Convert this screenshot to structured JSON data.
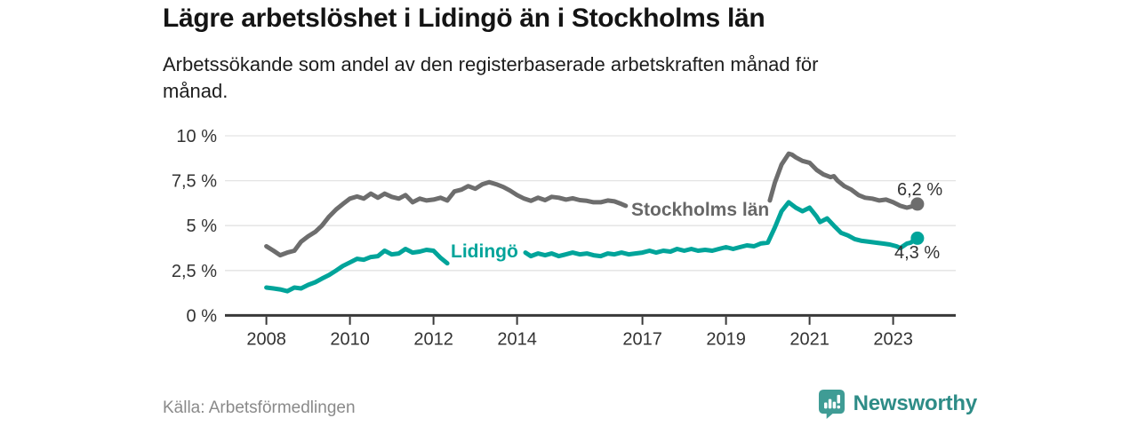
{
  "header": {
    "title": "Lägre arbetslöshet i Lidingö än i Stockholms län",
    "subtitle": "Arbetssökande som andel av den registerbaserade arbetskraften månad för månad."
  },
  "footer": {
    "source": "Källa: Arbetsförmedlingen",
    "brand": "Newsworthy",
    "brand_icon": "speech-bubble-bar-chart-icon",
    "brand_text_color": "#2e8c87",
    "brand_icon_color": "#3f9c95"
  },
  "chart_data": {
    "type": "line",
    "title": "Lägre arbetslöshet i Lidingö än i Stockholms län",
    "xlabel": "",
    "ylabel": "",
    "unit": "%",
    "grid": "horizontal",
    "legend_position": "inline-labels",
    "ylim": [
      0,
      10
    ],
    "xlim": [
      2007.1,
      2024.5
    ],
    "yticks": [
      {
        "value": 0,
        "label": "0 %"
      },
      {
        "value": 2.5,
        "label": "2,5 %"
      },
      {
        "value": 5,
        "label": "5 %"
      },
      {
        "value": 7.5,
        "label": "7,5 %"
      },
      {
        "value": 10,
        "label": "10 %"
      }
    ],
    "xticks": [
      {
        "value": 2008,
        "label": "2008"
      },
      {
        "value": 2010,
        "label": "2010"
      },
      {
        "value": 2012,
        "label": "2012"
      },
      {
        "value": 2014,
        "label": "2014"
      },
      {
        "value": 2017,
        "label": "2017"
      },
      {
        "value": 2019,
        "label": "2019"
      },
      {
        "value": 2021,
        "label": "2021"
      },
      {
        "value": 2023,
        "label": "2023"
      }
    ],
    "axis_color": "#383838",
    "grid_color": "#e3e3e3",
    "tick_text_color": "#333333",
    "series": [
      {
        "name": "Stockholms län",
        "color": "#6d6d6d",
        "label_color": "#676767",
        "end_label": "6,2 %",
        "end_value": 6.2,
        "segments": [
          [
            [
              2008,
              3.85
            ],
            [
              2008.17,
              3.6
            ],
            [
              2008.33,
              3.35
            ],
            [
              2008.5,
              3.5
            ],
            [
              2008.67,
              3.6
            ],
            [
              2008.83,
              4.1
            ],
            [
              2009,
              4.4
            ],
            [
              2009.17,
              4.65
            ],
            [
              2009.33,
              5.0
            ],
            [
              2009.5,
              5.5
            ],
            [
              2009.67,
              5.9
            ],
            [
              2009.83,
              6.2
            ],
            [
              2010,
              6.5
            ],
            [
              2010.17,
              6.62
            ],
            [
              2010.33,
              6.5
            ],
            [
              2010.5,
              6.78
            ],
            [
              2010.67,
              6.55
            ],
            [
              2010.83,
              6.78
            ],
            [
              2011,
              6.6
            ],
            [
              2011.17,
              6.5
            ],
            [
              2011.33,
              6.7
            ],
            [
              2011.5,
              6.3
            ],
            [
              2011.67,
              6.5
            ],
            [
              2011.83,
              6.4
            ],
            [
              2012,
              6.45
            ],
            [
              2012.17,
              6.55
            ],
            [
              2012.33,
              6.4
            ],
            [
              2012.5,
              6.9
            ],
            [
              2012.67,
              7.0
            ],
            [
              2012.83,
              7.2
            ],
            [
              2013,
              7.05
            ],
            [
              2013.17,
              7.3
            ],
            [
              2013.33,
              7.42
            ],
            [
              2013.5,
              7.3
            ],
            [
              2013.67,
              7.15
            ],
            [
              2013.83,
              6.95
            ],
            [
              2014,
              6.7
            ],
            [
              2014.17,
              6.5
            ],
            [
              2014.33,
              6.38
            ],
            [
              2014.5,
              6.55
            ],
            [
              2014.67,
              6.42
            ],
            [
              2014.83,
              6.6
            ],
            [
              2015,
              6.55
            ],
            [
              2015.17,
              6.45
            ],
            [
              2015.33,
              6.52
            ],
            [
              2015.5,
              6.42
            ],
            [
              2015.67,
              6.38
            ],
            [
              2015.83,
              6.3
            ],
            [
              2016,
              6.3
            ],
            [
              2016.17,
              6.4
            ],
            [
              2016.33,
              6.35
            ],
            [
              2016.5,
              6.2
            ],
            [
              2016.6,
              6.1
            ]
          ],
          [
            [
              2020.05,
              6.4
            ],
            [
              2020.17,
              7.4
            ],
            [
              2020.33,
              8.4
            ],
            [
              2020.5,
              9.0
            ],
            [
              2020.58,
              8.95
            ],
            [
              2020.67,
              8.8
            ],
            [
              2020.83,
              8.6
            ],
            [
              2021,
              8.5
            ],
            [
              2021.17,
              8.1
            ],
            [
              2021.33,
              7.85
            ],
            [
              2021.5,
              7.7
            ],
            [
              2021.58,
              7.75
            ],
            [
              2021.67,
              7.5
            ],
            [
              2021.83,
              7.2
            ],
            [
              2022,
              7.0
            ],
            [
              2022.17,
              6.7
            ],
            [
              2022.33,
              6.55
            ],
            [
              2022.5,
              6.5
            ],
            [
              2022.67,
              6.4
            ],
            [
              2022.83,
              6.45
            ],
            [
              2023,
              6.3
            ],
            [
              2023.17,
              6.1
            ],
            [
              2023.33,
              6.0
            ],
            [
              2023.5,
              6.1
            ],
            [
              2023.58,
              6.2
            ]
          ]
        ]
      },
      {
        "name": "Lidingö",
        "color": "#00a49a",
        "label_color": "#00a49a",
        "end_label": "4,3 %",
        "end_value": 4.3,
        "segments": [
          [
            [
              2008,
              1.55
            ],
            [
              2008.17,
              1.5
            ],
            [
              2008.33,
              1.45
            ],
            [
              2008.5,
              1.35
            ],
            [
              2008.67,
              1.55
            ],
            [
              2008.83,
              1.5
            ],
            [
              2009,
              1.7
            ],
            [
              2009.17,
              1.85
            ],
            [
              2009.33,
              2.05
            ],
            [
              2009.5,
              2.25
            ],
            [
              2009.67,
              2.5
            ],
            [
              2009.83,
              2.75
            ],
            [
              2010,
              2.95
            ],
            [
              2010.17,
              3.15
            ],
            [
              2010.33,
              3.1
            ],
            [
              2010.5,
              3.25
            ],
            [
              2010.67,
              3.3
            ],
            [
              2010.83,
              3.6
            ],
            [
              2011,
              3.4
            ],
            [
              2011.17,
              3.45
            ],
            [
              2011.33,
              3.7
            ],
            [
              2011.5,
              3.5
            ],
            [
              2011.67,
              3.55
            ],
            [
              2011.83,
              3.65
            ],
            [
              2012,
              3.6
            ],
            [
              2012.17,
              3.2
            ],
            [
              2012.33,
              2.9
            ]
          ],
          [
            [
              2014.2,
              3.5
            ],
            [
              2014.33,
              3.3
            ],
            [
              2014.5,
              3.45
            ],
            [
              2014.67,
              3.35
            ],
            [
              2014.83,
              3.45
            ],
            [
              2015,
              3.3
            ],
            [
              2015.17,
              3.4
            ],
            [
              2015.33,
              3.5
            ],
            [
              2015.5,
              3.4
            ],
            [
              2015.67,
              3.45
            ],
            [
              2015.83,
              3.35
            ],
            [
              2016,
              3.3
            ],
            [
              2016.17,
              3.45
            ],
            [
              2016.33,
              3.4
            ],
            [
              2016.5,
              3.5
            ],
            [
              2016.67,
              3.4
            ],
            [
              2016.83,
              3.45
            ],
            [
              2017,
              3.5
            ],
            [
              2017.17,
              3.6
            ],
            [
              2017.33,
              3.5
            ],
            [
              2017.5,
              3.6
            ],
            [
              2017.67,
              3.55
            ],
            [
              2017.83,
              3.7
            ],
            [
              2018,
              3.6
            ],
            [
              2018.17,
              3.7
            ],
            [
              2018.33,
              3.6
            ],
            [
              2018.5,
              3.65
            ],
            [
              2018.67,
              3.6
            ],
            [
              2018.83,
              3.7
            ],
            [
              2019,
              3.8
            ],
            [
              2019.17,
              3.7
            ],
            [
              2019.33,
              3.8
            ],
            [
              2019.5,
              3.9
            ],
            [
              2019.67,
              3.85
            ],
            [
              2019.83,
              4.0
            ],
            [
              2020,
              4.05
            ],
            [
              2020.17,
              4.9
            ],
            [
              2020.33,
              5.8
            ],
            [
              2020.5,
              6.3
            ],
            [
              2020.67,
              6.0
            ],
            [
              2020.83,
              5.8
            ],
            [
              2021,
              6.0
            ],
            [
              2021.17,
              5.5
            ],
            [
              2021.25,
              5.2
            ],
            [
              2021.42,
              5.4
            ],
            [
              2021.58,
              5.0
            ],
            [
              2021.75,
              4.6
            ],
            [
              2021.92,
              4.45
            ],
            [
              2022.08,
              4.25
            ],
            [
              2022.25,
              4.15
            ],
            [
              2022.42,
              4.1
            ],
            [
              2022.58,
              4.05
            ],
            [
              2022.75,
              4.0
            ],
            [
              2022.92,
              3.95
            ],
            [
              2023.08,
              3.85
            ],
            [
              2023.17,
              3.75
            ],
            [
              2023.33,
              4.0
            ],
            [
              2023.42,
              4.05
            ],
            [
              2023.58,
              4.3
            ]
          ]
        ]
      }
    ]
  }
}
